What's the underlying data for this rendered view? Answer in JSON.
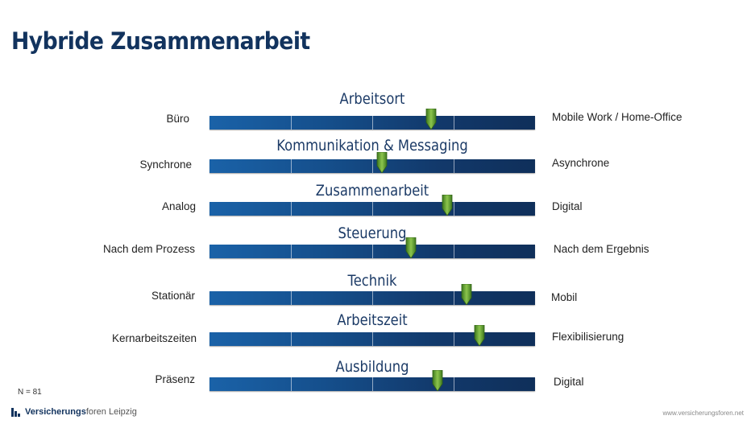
{
  "title": "Hybride Zusammenarbeit",
  "sample_note": "N = 81",
  "footer": {
    "logo_bold": "Versicherungs",
    "logo_rest": "foren Leipzig",
    "url": "www.versicherungsforen.net"
  },
  "colors": {
    "title": "#12335e",
    "bar_start": "#1a62a8",
    "bar_end": "#0f2f5a",
    "marker": "#6aa63a"
  },
  "scales": [
    {
      "heading": "Arbeitsort",
      "left": "Büro",
      "right": "Mobile Work / Home-Office",
      "value": 0.68
    },
    {
      "heading": "Kommunikation & Messaging",
      "left": "Synchrone",
      "right": "Asynchrone",
      "value": 0.53
    },
    {
      "heading": "Zusammenarbeit",
      "left": "Analog",
      "right": "Digital",
      "value": 0.73
    },
    {
      "heading": "Steuerung",
      "left": "Nach dem Prozess",
      "right": "Nach dem Ergebnis",
      "value": 0.62
    },
    {
      "heading": "Technik",
      "left": "Stationär",
      "right": "Mobil",
      "value": 0.79
    },
    {
      "heading": "Arbeitszeit",
      "left": "Kernarbeitszeiten",
      "right": "Flexibilisierung",
      "value": 0.83
    },
    {
      "heading": "Ausbildung",
      "left": "Präsenz",
      "right": "Digital",
      "value": 0.7
    }
  ]
}
